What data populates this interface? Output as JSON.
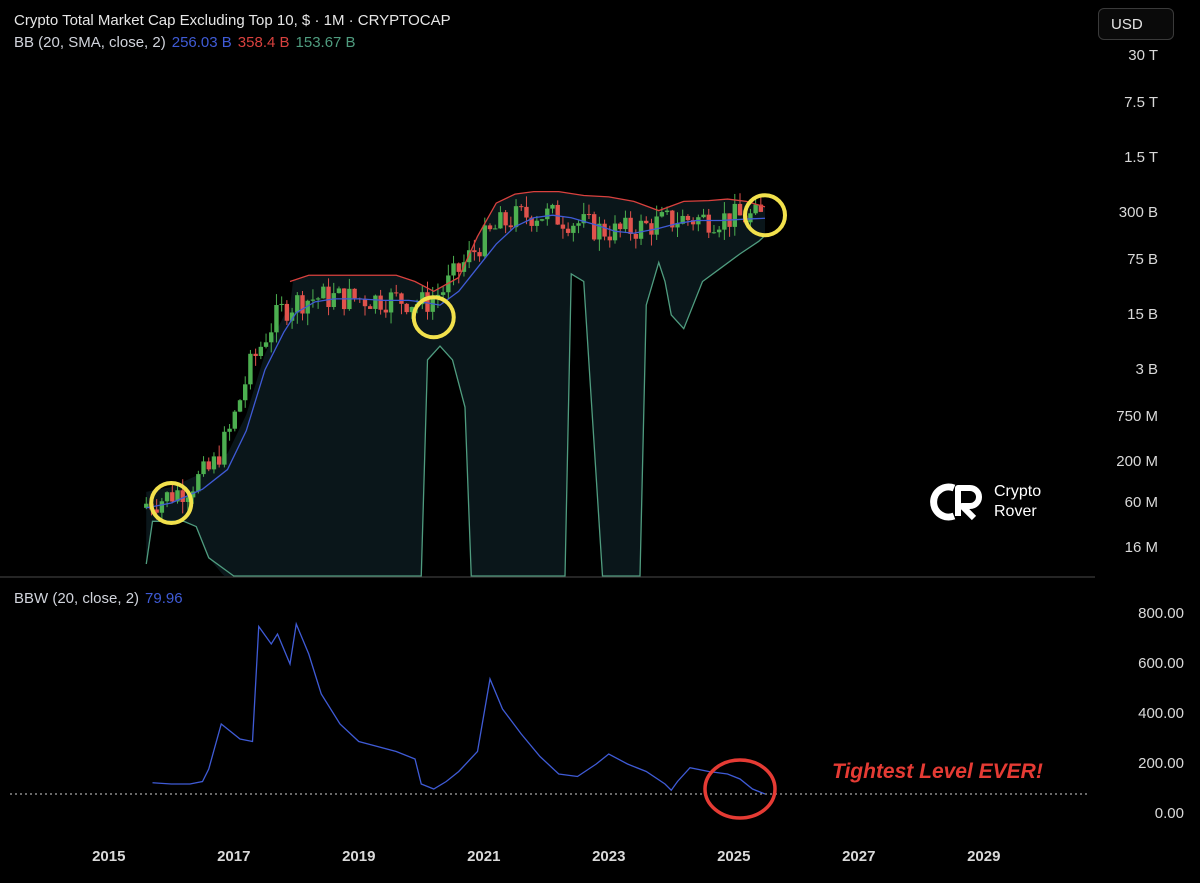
{
  "header": {
    "title": "Crypto Total Market Cap Excluding Top 10, $ · 1M · CRYPTOCAP",
    "bb_label": "BB (20, SMA, close, 2)",
    "bb_basis": "256.03 B",
    "bb_upper": "358.4 B",
    "bb_lower": "153.67 B",
    "bbw_label": "BBW (20, close, 2)",
    "bbw_value": "79.96",
    "currency": "USD"
  },
  "colors": {
    "basis": "#3f5bd6",
    "upper": "#d9413e",
    "lower": "#4f9c7f",
    "up_candle": "#4caf50",
    "down_candle": "#e0524c",
    "bbw_line": "#3f5bd6",
    "highlight_circle": "#f2e14c",
    "annotation_circle": "#e53b34"
  },
  "annotation": "Tightest Level EVER!",
  "brand": {
    "line1": "Crypto",
    "line2": "Rover"
  },
  "chart_data": [
    {
      "type": "line",
      "title": "Crypto Total Market Cap Excluding Top 10, $ · 1M · CRYPTOCAP",
      "y_scale": "log",
      "y_tick_labels": [
        "30 T",
        "7.5 T",
        "1.5 T",
        "300 B",
        "75 B",
        "15 B",
        "3 B",
        "750 M",
        "200 M",
        "60 M",
        "16 M"
      ],
      "y_tick_values": [
        30000,
        7500,
        1500,
        300,
        75,
        15,
        3,
        0.75,
        0.2,
        0.06,
        0.016
      ],
      "y_unit": "billions USD",
      "x_tick_labels": [
        "2015",
        "2017",
        "2019",
        "2021",
        "2023",
        "2025",
        "2027",
        "2029"
      ],
      "x_range": [
        2013.9,
        2030.7
      ],
      "series": [
        {
          "name": "BB basis",
          "x": [
            2015.6,
            2016.0,
            2016.5,
            2016.9,
            2017.2,
            2017.5,
            2017.8,
            2018.0,
            2018.3,
            2018.6,
            2019.0,
            2019.4,
            2019.8,
            2020.0,
            2020.3,
            2020.6,
            2020.9,
            2021.2,
            2021.5,
            2021.8,
            2022.1,
            2022.4,
            2022.8,
            2023.1,
            2023.4,
            2023.8,
            2024.1,
            2024.4,
            2024.8,
            2025.2,
            2025.5
          ],
          "values": [
            0.052,
            0.06,
            0.09,
            0.16,
            0.5,
            3,
            9,
            16,
            22,
            24,
            24,
            23,
            23,
            22,
            20,
            30,
            60,
            120,
            200,
            260,
            280,
            260,
            210,
            175,
            165,
            190,
            220,
            240,
            240,
            250,
            256
          ]
        },
        {
          "name": "BB upper",
          "x": [
            2017.9,
            2018.2,
            2018.7,
            2019.2,
            2019.6,
            2019.9,
            2020.2,
            2020.6,
            2020.9,
            2021.2,
            2021.5,
            2021.8,
            2022.2,
            2022.6,
            2023.0,
            2023.4,
            2023.8,
            2024.2,
            2024.6,
            2024.9,
            2025.2,
            2025.5
          ],
          "values": [
            40,
            48,
            48,
            48,
            48,
            40,
            30,
            45,
            150,
            400,
            520,
            560,
            560,
            500,
            480,
            420,
            320,
            420,
            430,
            450,
            420,
            358
          ]
        },
        {
          "name": "BB lower",
          "x": [
            2015.6,
            2015.7,
            2016.2,
            2016.4,
            2016.6,
            2017.0,
            2020.0,
            2020.1,
            2020.3,
            2020.5,
            2020.7,
            2020.8,
            2022.3,
            2022.4,
            2022.6,
            2022.9,
            2023.0,
            2023.5,
            2023.6,
            2023.8,
            2023.9,
            2024.0,
            2024.2,
            2024.5,
            2024.8,
            2025.1,
            2025.4,
            2025.5
          ],
          "values": [
            0.01,
            0.035,
            0.035,
            0.03,
            0.012,
            0.005,
            0.005,
            4,
            6,
            4,
            1,
            0.005,
            0.005,
            50,
            40,
            0.005,
            0.005,
            0.005,
            20,
            70,
            40,
            15,
            10,
            40,
            60,
            90,
            130,
            154
          ]
        }
      ]
    },
    {
      "type": "line",
      "title": "BBW (20, close, 2)",
      "y_tick_labels": [
        "800.00",
        "600.00",
        "400.00",
        "200.00",
        "0.00"
      ],
      "ylim": [
        0,
        800
      ],
      "x_tick_labels": [
        "2015",
        "2017",
        "2019",
        "2021",
        "2023",
        "2025",
        "2027",
        "2029"
      ],
      "series": [
        {
          "name": "BBW",
          "x": [
            2015.7,
            2016.0,
            2016.3,
            2016.5,
            2016.6,
            2016.8,
            2017.1,
            2017.3,
            2017.4,
            2017.6,
            2017.7,
            2017.9,
            2018.0,
            2018.2,
            2018.4,
            2018.7,
            2019.0,
            2019.3,
            2019.6,
            2019.9,
            2020.0,
            2020.2,
            2020.4,
            2020.6,
            2020.9,
            2021.1,
            2021.3,
            2021.6,
            2021.9,
            2022.2,
            2022.5,
            2022.8,
            2023.0,
            2023.3,
            2023.6,
            2023.9,
            2024.0,
            2024.1,
            2024.3,
            2024.6,
            2024.9,
            2025.1,
            2025.3,
            2025.5
          ],
          "values": [
            125,
            120,
            120,
            130,
            180,
            360,
            300,
            290,
            750,
            680,
            720,
            600,
            760,
            640,
            480,
            360,
            290,
            270,
            250,
            220,
            120,
            100,
            130,
            170,
            250,
            540,
            420,
            320,
            230,
            160,
            150,
            200,
            240,
            200,
            170,
            120,
            95,
            130,
            185,
            170,
            160,
            140,
            100,
            80
          ]
        }
      ],
      "reference_level": 80
    }
  ]
}
